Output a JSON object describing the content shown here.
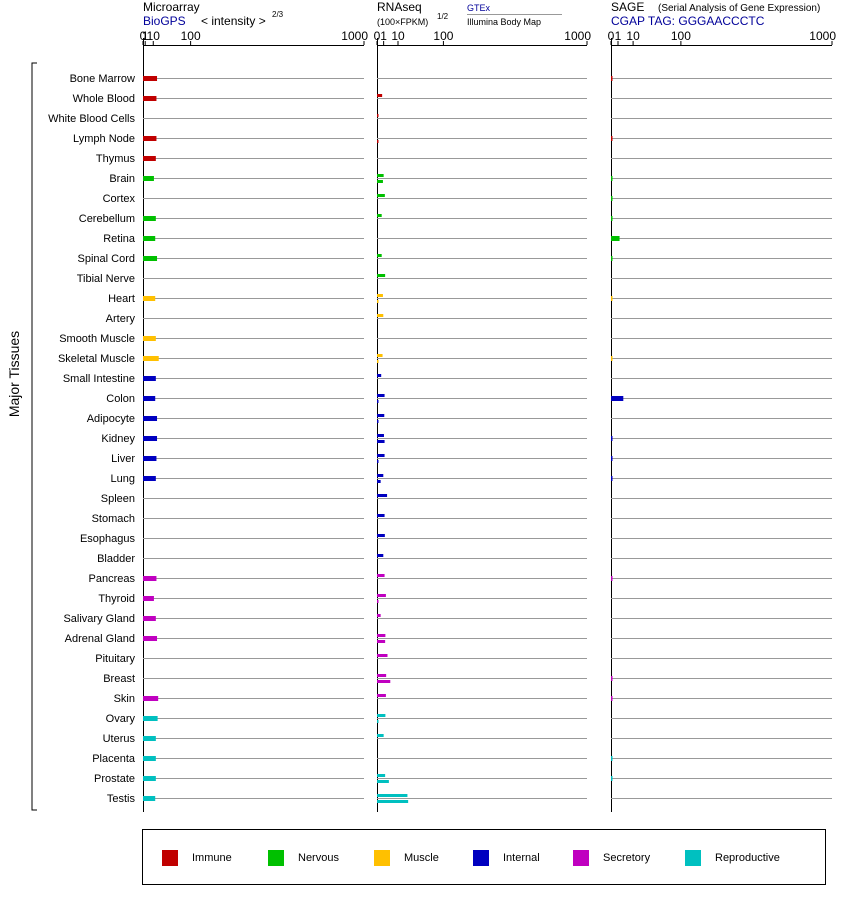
{
  "panels": {
    "microarray": {
      "title": "Microarray",
      "source": "BioGPS",
      "measure": "< intensity >",
      "exponent": "2/3"
    },
    "rnaseq": {
      "title": "RNAseq",
      "unit": "(100×FPKM)",
      "exponent": "1/2",
      "source_a": "GTEx",
      "source_b": "Illumina Body Map"
    },
    "sage": {
      "title": "SAGE",
      "subtitle": "(Serial Analysis of Gene Expression)",
      "tag": "CGAP TAG: GGGAACCCTC"
    }
  },
  "group_label": "Major Tissues",
  "colors": {
    "Immune": "#c00000",
    "Nervous": "#00c000",
    "Muscle": "#ffc000",
    "Internal": "#0000c0",
    "Secretory": "#c000c0",
    "Reproductive": "#00c0c0",
    "source_blue": "#000099",
    "row_line": "#999999"
  },
  "legend": [
    {
      "label": "Immune",
      "key": "Immune"
    },
    {
      "label": "Nervous",
      "key": "Nervous"
    },
    {
      "label": "Muscle",
      "key": "Muscle"
    },
    {
      "label": "Internal",
      "key": "Internal"
    },
    {
      "label": "Secretory",
      "key": "Secretory"
    },
    {
      "label": "Reproductive",
      "key": "Reproductive"
    }
  ],
  "chart_data": [
    {
      "type": "bar",
      "orientation": "horizontal",
      "title": "Microarray",
      "scale": "power 2/3",
      "xlim": [
        0,
        1000
      ],
      "xticks": [
        "0",
        "1",
        "10",
        "100",
        "1000"
      ],
      "categories": [
        "Bone Marrow",
        "Whole Blood",
        "White Blood Cells",
        "Lymph Node",
        "Thymus",
        "Brain",
        "Cortex",
        "Cerebellum",
        "Retina",
        "Spinal Cord",
        "Tibial Nerve",
        "Heart",
        "Artery",
        "Smooth Muscle",
        "Skeletal Muscle",
        "Small Intestine",
        "Colon",
        "Adipocyte",
        "Kidney",
        "Liver",
        "Lung",
        "Spleen",
        "Stomach",
        "Esophagus",
        "Bladder",
        "Pancreas",
        "Thyroid",
        "Salivary Gland",
        "Adrenal Gland",
        "Pituitary",
        "Breast",
        "Skin",
        "Ovary",
        "Uterus",
        "Placenta",
        "Prostate",
        "Testis"
      ],
      "groups": [
        "Immune",
        "Immune",
        "Immune",
        "Immune",
        "Immune",
        "Nervous",
        "Nervous",
        "Nervous",
        "Nervous",
        "Nervous",
        "Nervous",
        "Muscle",
        "Muscle",
        "Muscle",
        "Muscle",
        "Internal",
        "Internal",
        "Internal",
        "Internal",
        "Internal",
        "Internal",
        "Internal",
        "Internal",
        "Internal",
        "Internal",
        "Secretory",
        "Secretory",
        "Secretory",
        "Secretory",
        "Secretory",
        "Secretory",
        "Secretory",
        "Reproductive",
        "Reproductive",
        "Reproductive",
        "Reproductive",
        "Reproductive"
      ],
      "series": [
        {
          "values": [
            16,
            15,
            null,
            15,
            14,
            11,
            null,
            14,
            13,
            16,
            null,
            13,
            null,
            14,
            19,
            14,
            13,
            16,
            16,
            15,
            14,
            null,
            null,
            null,
            null,
            15,
            11,
            14,
            16,
            null,
            null,
            18,
            17,
            14,
            14,
            14,
            13
          ]
        }
      ]
    },
    {
      "type": "bar",
      "orientation": "horizontal",
      "title": "RNAseq",
      "scale": "power 1/2",
      "xlim": [
        0,
        1000
      ],
      "xticks": [
        "0",
        "1",
        "10",
        "100",
        "1000"
      ],
      "categories": [
        "Bone Marrow",
        "Whole Blood",
        "White Blood Cells",
        "Lymph Node",
        "Thymus",
        "Brain",
        "Cortex",
        "Cerebellum",
        "Retina",
        "Spinal Cord",
        "Tibial Nerve",
        "Heart",
        "Artery",
        "Smooth Muscle",
        "Skeletal Muscle",
        "Small Intestine",
        "Colon",
        "Adipocyte",
        "Kidney",
        "Liver",
        "Lung",
        "Spleen",
        "Stomach",
        "Esophagus",
        "Bladder",
        "Pancreas",
        "Thyroid",
        "Salivary Gland",
        "Adrenal Gland",
        "Pituitary",
        "Breast",
        "Skin",
        "Ovary",
        "Uterus",
        "Placenta",
        "Prostate",
        "Testis"
      ],
      "series": [
        {
          "name": "GTEx",
          "values": [
            null,
            0.6,
            0.006,
            null,
            null,
            1.0,
            1.4,
            0.5,
            null,
            0.5,
            1.5,
            0.8,
            0.9,
            null,
            0.7,
            0.4,
            1.3,
            1.2,
            1.1,
            1.3,
            0.9,
            2.3,
            1.3,
            1.4,
            0.9,
            1.3,
            1.8,
            0.3,
            1.6,
            2.5,
            1.9,
            1.8,
            1.6,
            1.0,
            null,
            1.5,
            21
          ]
        },
        {
          "name": "Illumina Body Map",
          "values": [
            null,
            null,
            null,
            0.008,
            null,
            0.8,
            null,
            null,
            null,
            null,
            null,
            0.005,
            null,
            null,
            0.004,
            null,
            0.02,
            0.005,
            1.3,
            0.005,
            0.3,
            null,
            null,
            null,
            null,
            null,
            0.006,
            null,
            1.5,
            null,
            4.0,
            null,
            0.005,
            null,
            null,
            3.2,
            22
          ]
        }
      ]
    },
    {
      "type": "bar",
      "orientation": "horizontal",
      "title": "SAGE",
      "scale": "power 1/2",
      "xlim": [
        0,
        1000
      ],
      "xticks": [
        "0",
        "1",
        "10",
        "100",
        "1000"
      ],
      "categories": [
        "Bone Marrow",
        "Whole Blood",
        "White Blood Cells",
        "Lymph Node",
        "Thymus",
        "Brain",
        "Cortex",
        "Cerebellum",
        "Retina",
        "Spinal Cord",
        "Tibial Nerve",
        "Heart",
        "Artery",
        "Smooth Muscle",
        "Skeletal Muscle",
        "Small Intestine",
        "Colon",
        "Adipocyte",
        "Kidney",
        "Liver",
        "Lung",
        "Spleen",
        "Stomach",
        "Esophagus",
        "Bladder",
        "Pancreas",
        "Thyroid",
        "Salivary Gland",
        "Adrenal Gland",
        "Pituitary",
        "Breast",
        "Skin",
        "Ovary",
        "Uterus",
        "Placenta",
        "Prostate",
        "Testis"
      ],
      "series": [
        {
          "values": [
            0.02,
            null,
            null,
            0.02,
            null,
            0.02,
            0.01,
            0.01,
            1.5,
            0.02,
            null,
            0.005,
            null,
            null,
            0.005,
            null,
            3.1,
            null,
            0.03,
            0.03,
            0.03,
            null,
            null,
            null,
            null,
            0.02,
            null,
            null,
            null,
            null,
            0.02,
            0.02,
            null,
            null,
            0.01,
            0.01,
            null
          ]
        }
      ]
    }
  ]
}
